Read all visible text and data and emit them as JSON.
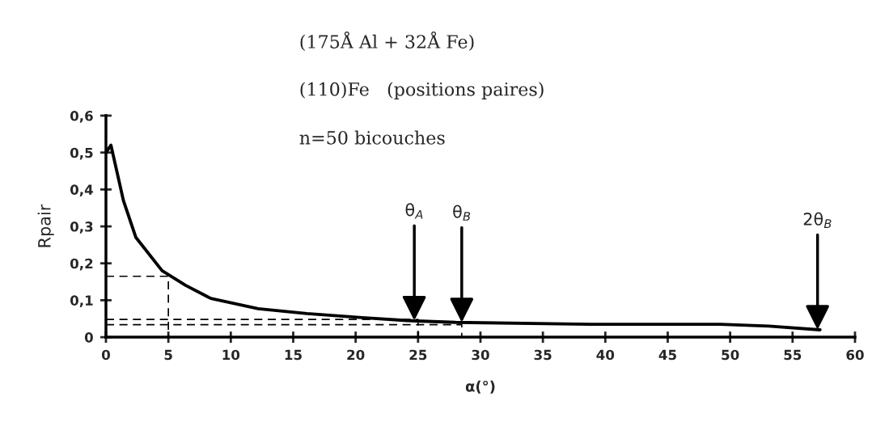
{
  "chart_data": {
    "type": "line",
    "xlabel": "α(°)",
    "ylabel": "Rpair",
    "annotations": [
      "(175Å Al + 32Å Fe)",
      "(110)Fe   (positions paires)",
      "n=50 bicouches",
      {
        "text": "θ$_{A}$",
        "x": 24.7,
        "y": 0.045
      },
      {
        "text": "θ$_{B}$",
        "x": 28.5,
        "y": 0.04
      },
      {
        "text": "2θ$_{B}$",
        "x": 57,
        "y": 0.02
      }
    ],
    "series": [
      {
        "color": "#000000",
        "line_style": "solid",
        "x": [
          0,
          0.4,
          1.0,
          1.4,
          2.4,
          4.5,
          6.4,
          8.4,
          12.2,
          16.1,
          20.5,
          24.1,
          28,
          38.8,
          49.2,
          53.1,
          57.2
        ],
        "values": [
          0.5,
          0.52,
          0.43,
          0.37,
          0.27,
          0.18,
          0.14,
          0.105,
          0.077,
          0.064,
          0.053,
          0.045,
          0.04,
          0.035,
          0.035,
          0.03,
          0.02
        ]
      },
      {
        "color": "#000000",
        "line_style": "dashed",
        "x": [
          0,
          5,
          5
        ],
        "values": [
          0.165,
          0.165,
          0
        ]
      },
      {
        "color": "#000000",
        "line_style": "dashed",
        "x": [
          0,
          25,
          25
        ],
        "values": [
          0.048,
          0.048,
          0
        ]
      },
      {
        "color": "#000000",
        "line_style": "dashed",
        "x": [
          0,
          28.5,
          28.5
        ],
        "values": [
          0.034,
          0.034,
          0
        ]
      }
    ],
    "xlim": [
      0,
      60
    ],
    "xticks": [
      0,
      5,
      10,
      15,
      20,
      25,
      30,
      35,
      40,
      45,
      50,
      55,
      60
    ],
    "ylim": [
      0,
      0.6
    ],
    "yticks": [
      0,
      {
        "value": 0.1,
        "label": "0,1"
      },
      {
        "value": 0.2,
        "label": "0,2"
      },
      {
        "value": 0.3,
        "label": "0,3"
      },
      {
        "value": 0.4,
        "label": "0,4"
      },
      {
        "value": 0.5,
        "label": "0,5"
      },
      {
        "value": 0.6,
        "label": "0,6"
      }
    ],
    "grid": false,
    "legend": false,
    "marker": "none"
  }
}
